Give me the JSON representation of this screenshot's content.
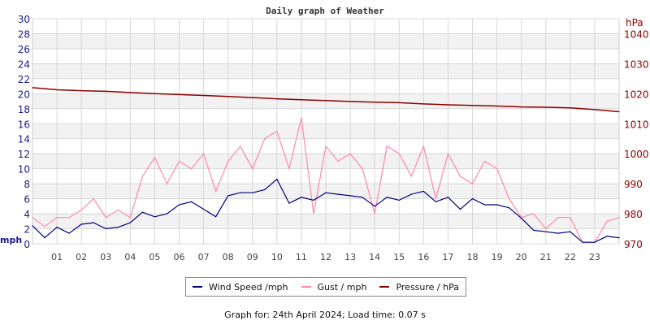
{
  "chart_data": {
    "type": "line",
    "title": "Daily graph of Weather",
    "x_ticks": [
      "01",
      "02",
      "03",
      "04",
      "05",
      "06",
      "07",
      "08",
      "09",
      "10",
      "11",
      "12",
      "13",
      "14",
      "15",
      "16",
      "17",
      "18",
      "19",
      "20",
      "21",
      "22",
      "23"
    ],
    "xlim": [
      0,
      24
    ],
    "left_axis": {
      "label": "mph",
      "ylim": [
        0,
        30
      ],
      "ticks": [
        0,
        2,
        4,
        6,
        8,
        10,
        12,
        14,
        16,
        18,
        20,
        22,
        24,
        26,
        28,
        30
      ]
    },
    "right_axis": {
      "label": "hPa",
      "ylim": [
        970,
        1045
      ],
      "ticks": [
        970,
        980,
        990,
        1000,
        1010,
        1020,
        1030,
        1040
      ]
    },
    "grid": true,
    "legend_position": "bottom",
    "series": [
      {
        "name": "Wind Speed /mph",
        "axis": "left",
        "color": "#000080",
        "x": [
          0,
          0.5,
          1,
          1.5,
          2,
          2.5,
          3,
          3.5,
          4,
          4.5,
          5,
          5.5,
          6,
          6.5,
          7,
          7.5,
          8,
          8.5,
          9,
          9.5,
          10,
          10.5,
          11,
          11.5,
          12,
          12.5,
          13,
          13.5,
          14,
          14.5,
          15,
          15.5,
          16,
          16.5,
          17,
          17.5,
          18,
          18.5,
          19,
          19.5,
          20,
          20.5,
          21,
          21.5,
          22,
          22.5,
          23,
          23.5,
          24
        ],
        "values": [
          2.4,
          0.8,
          2.2,
          1.4,
          2.6,
          2.8,
          2.0,
          2.2,
          2.8,
          4.2,
          3.6,
          4.0,
          5.2,
          5.6,
          4.6,
          3.6,
          6.4,
          6.8,
          6.8,
          7.2,
          8.6,
          5.4,
          6.2,
          5.8,
          6.8,
          6.6,
          6.4,
          6.2,
          5.0,
          6.2,
          5.8,
          6.6,
          7.0,
          5.6,
          6.2,
          4.6,
          6.0,
          5.2,
          5.2,
          4.8,
          3.4,
          1.8,
          1.6,
          1.4,
          1.6,
          0.2,
          0.2,
          1.0,
          0.8
        ]
      },
      {
        "name": "Gust / mph",
        "axis": "left",
        "color": "#ff88aa",
        "x": [
          0,
          0.5,
          1,
          1.5,
          2,
          2.5,
          3,
          3.5,
          4,
          4.5,
          5,
          5.5,
          6,
          6.5,
          7,
          7.5,
          8,
          8.5,
          9,
          9.5,
          10,
          10.5,
          11,
          11.5,
          12,
          12.5,
          13,
          13.5,
          14,
          14.5,
          15,
          15.5,
          16,
          16.5,
          17,
          17.5,
          18,
          18.5,
          19,
          19.5,
          20,
          20.5,
          21,
          21.5,
          22,
          22.5,
          23,
          23.5,
          24
        ],
        "values": [
          3.5,
          2.3,
          3.5,
          3.5,
          4.5,
          6.0,
          3.5,
          4.5,
          3.5,
          9.0,
          11.5,
          8.0,
          11.0,
          10.0,
          12.0,
          7.0,
          11.0,
          13.0,
          10.0,
          14.0,
          15.0,
          10.0,
          16.8,
          4.0,
          13.0,
          11.0,
          12.0,
          10.0,
          4.0,
          13.0,
          12.0,
          9.0,
          13.0,
          6.0,
          12.0,
          9.0,
          8.0,
          11.0,
          10.0,
          6.0,
          3.5,
          4.0,
          2.0,
          3.5,
          3.5,
          0.2,
          0.2,
          3.0,
          3.5
        ]
      },
      {
        "name": "Pressure / hPa",
        "axis": "right",
        "color": "#8b0000",
        "x": [
          0,
          1,
          2,
          3,
          4,
          5,
          6,
          7,
          8,
          9,
          10,
          11,
          12,
          13,
          14,
          15,
          16,
          17,
          18,
          19,
          20,
          21,
          22,
          23,
          24
        ],
        "values": [
          1022,
          1021.3,
          1021,
          1020.8,
          1020.4,
          1020,
          1019.7,
          1019.4,
          1019.1,
          1018.7,
          1018.3,
          1018,
          1017.7,
          1017.4,
          1017.2,
          1017,
          1016.6,
          1016.3,
          1016.1,
          1015.9,
          1015.6,
          1015.5,
          1015.3,
          1014.7,
          1014
        ]
      }
    ]
  },
  "legend": {
    "items": [
      "Wind Speed /mph",
      "Gust / mph",
      "Pressure / hPa"
    ]
  },
  "footer": "Graph for: 24th April 2024; Load time: 0.07 s"
}
